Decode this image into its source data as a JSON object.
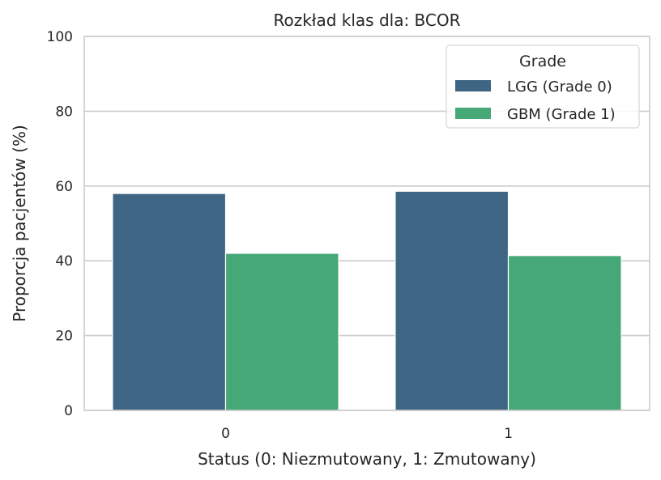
{
  "chart_data": {
    "type": "bar",
    "title": "Rozkład klas dla: BCOR",
    "xlabel": "Status (0: Niezmutowany, 1: Zmutowany)",
    "ylabel": "Proporcja pacjentów (%)",
    "categories": [
      "0",
      "1"
    ],
    "series": [
      {
        "name": "LGG (Grade 0)",
        "color": "#3e6583",
        "values": [
          58.0,
          58.6
        ]
      },
      {
        "name": "GBM (Grade 1)",
        "color": "#46a877",
        "values": [
          42.0,
          41.4
        ]
      }
    ],
    "ylim": [
      0,
      100
    ],
    "yticks": [
      "0",
      "20",
      "40",
      "60",
      "80",
      "100"
    ],
    "grid": "horizontal",
    "legend": {
      "title": "Grade",
      "position": "top-right"
    }
  }
}
